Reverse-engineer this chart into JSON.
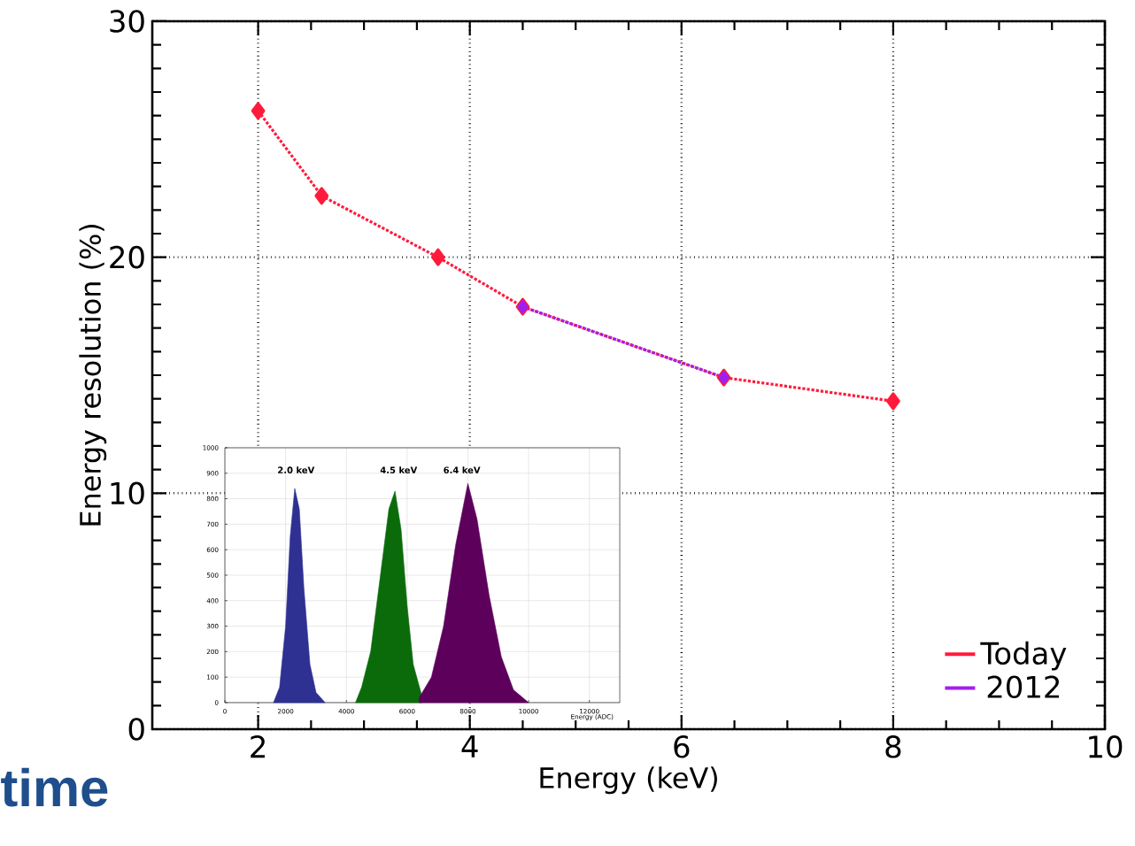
{
  "chart_data": [
    {
      "type": "line",
      "xlabel": "Energy (keV)",
      "ylabel": "Energy resolution (%)",
      "xlim": [
        1,
        10
      ],
      "xticks": [
        2,
        4,
        6,
        8,
        10
      ],
      "ylim": [
        0,
        30
      ],
      "yticks": [
        0,
        10,
        20,
        30
      ],
      "grid": true,
      "legend": "bottom right",
      "marker": "diamond",
      "line_style": "dotted",
      "annotations": [
        "time"
      ],
      "series": [
        {
          "name": "Today",
          "color": "#ff1a3c",
          "x": [
            2,
            2.6,
            3.7,
            4.5,
            6.4,
            8.0
          ],
          "values": [
            26.2,
            22.6,
            20.0,
            17.9,
            14.9,
            13.9
          ]
        },
        {
          "name": "2012",
          "color": "#a020f0",
          "x": [
            4.5,
            6.4
          ],
          "values": [
            17.9,
            14.9
          ]
        }
      ]
    },
    {
      "type": "area",
      "xlabel": "Energy (ADC)",
      "xlim": [
        0,
        13000
      ],
      "xticks": [
        0,
        2000,
        4000,
        6000,
        8000,
        10000,
        12000
      ],
      "ylim": [
        0,
        1000
      ],
      "yticks": [
        0,
        100,
        200,
        300,
        400,
        500,
        600,
        700,
        800,
        900,
        1000
      ],
      "grid": true,
      "marker": "none",
      "annotations": [
        "2.0 keV",
        "4.5 keV",
        "6.4 keV"
      ],
      "series": [
        {
          "color": "#2e3192",
          "x": [
            1600,
            1800,
            2000,
            2150,
            2300,
            2450,
            2600,
            2800,
            3000,
            3300
          ],
          "values": [
            0,
            60,
            300,
            650,
            840,
            760,
            450,
            150,
            40,
            0
          ]
        },
        {
          "color": "#0b6b0b",
          "x": [
            4300,
            4500,
            4800,
            5100,
            5400,
            5600,
            5800,
            6000,
            6200,
            6500
          ],
          "values": [
            0,
            60,
            200,
            480,
            760,
            830,
            680,
            380,
            150,
            20
          ]
        },
        {
          "color": "#5c005c",
          "x": [
            6400,
            6800,
            7200,
            7600,
            8000,
            8300,
            8700,
            9100,
            9500,
            10000
          ],
          "values": [
            20,
            100,
            300,
            620,
            860,
            720,
            420,
            180,
            50,
            0
          ]
        }
      ]
    }
  ]
}
